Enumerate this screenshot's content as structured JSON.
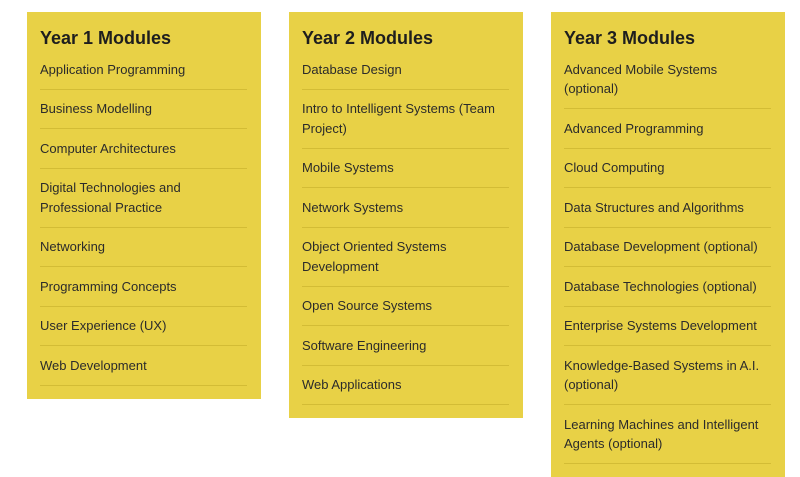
{
  "columns": [
    {
      "title": "Year 1 Modules",
      "items": [
        "Application Programming",
        "Business Modelling",
        "Computer Architectures",
        "Digital Technologies and Professional Practice",
        "Networking",
        "Programming Concepts",
        "User Experience (UX)",
        "Web Development"
      ]
    },
    {
      "title": "Year 2 Modules",
      "items": [
        "Database Design",
        "Intro to Intelligent Systems (Team Project)",
        "Mobile Systems",
        "Network Systems",
        "Object Oriented Systems Development",
        "Open Source Systems",
        "Software Engineering",
        "Web Applications"
      ]
    },
    {
      "title": "Year 3 Modules",
      "items": [
        "Advanced Mobile Systems (optional)",
        "Advanced Programming",
        "Cloud Computing",
        "Data Structures and Algorithms",
        "Database Development (optional)",
        "Database Technologies (optional)",
        "Enterprise Systems Development",
        "Knowledge-Based Systems in A.I. (optional)",
        "Learning Machines and Intelligent Agents (optional)"
      ]
    }
  ]
}
